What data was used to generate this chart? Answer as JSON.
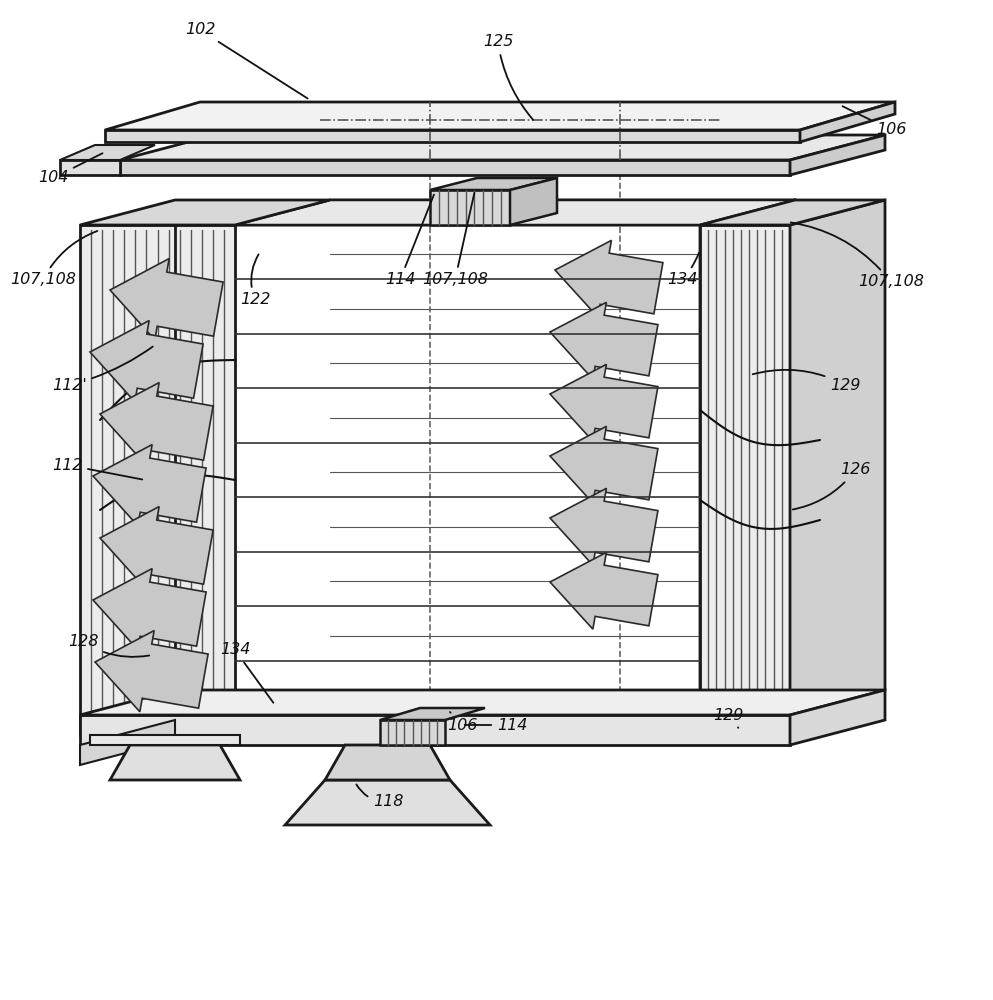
{
  "bg_color": "#ffffff",
  "line_color": "#1a1a1a",
  "arrow_fill": "#c8c8c8",
  "arrow_edge": "#2a2a2a",
  "label_fontsize": 11.5,
  "corr_color": "#e0e0e0",
  "plate_light": "#f5f5f5",
  "plate_mid": "#ebebeb",
  "plate_dark": "#d8d8d8"
}
